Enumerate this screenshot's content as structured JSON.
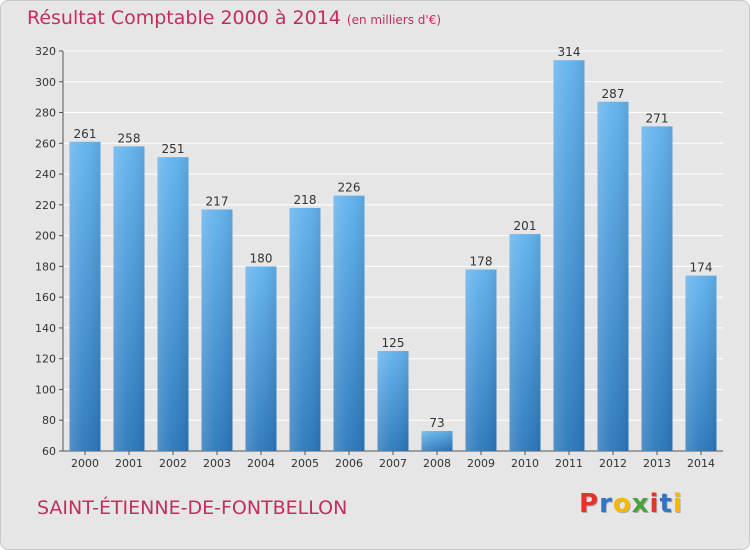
{
  "header": {
    "title": "Résultat Comptable 2000 à 2014",
    "unit": "(en milliers d'€)"
  },
  "footer": {
    "commune": "SAINT-ÉTIENNE-DE-FONTBELLON",
    "logo_text": "Proxiti",
    "logo_colors": [
      "#e8312b",
      "#2e75c8",
      "#f6b800",
      "#4aa23c",
      "#e8312b",
      "#2e75c8",
      "#f6b800"
    ]
  },
  "colors": {
    "title": "#c0305a",
    "bar_light": "#62b2ee",
    "bar_dark": "#2a78bc",
    "grid": "#ffffff",
    "axis_text": "#333333"
  },
  "chart_data": {
    "type": "bar",
    "categories": [
      "2000",
      "2001",
      "2002",
      "2003",
      "2004",
      "2005",
      "2006",
      "2007",
      "2008",
      "2009",
      "2010",
      "2011",
      "2012",
      "2013",
      "2014"
    ],
    "values": [
      261,
      258,
      251,
      217,
      180,
      218,
      226,
      125,
      73,
      178,
      201,
      314,
      287,
      271,
      174
    ],
    "ylim": [
      60,
      320
    ],
    "yticks": [
      60,
      80,
      100,
      120,
      140,
      160,
      180,
      200,
      220,
      240,
      260,
      280,
      300,
      320
    ],
    "grid": true,
    "title": "Résultat Comptable 2000 à 2014",
    "xlabel": "",
    "ylabel": ""
  }
}
